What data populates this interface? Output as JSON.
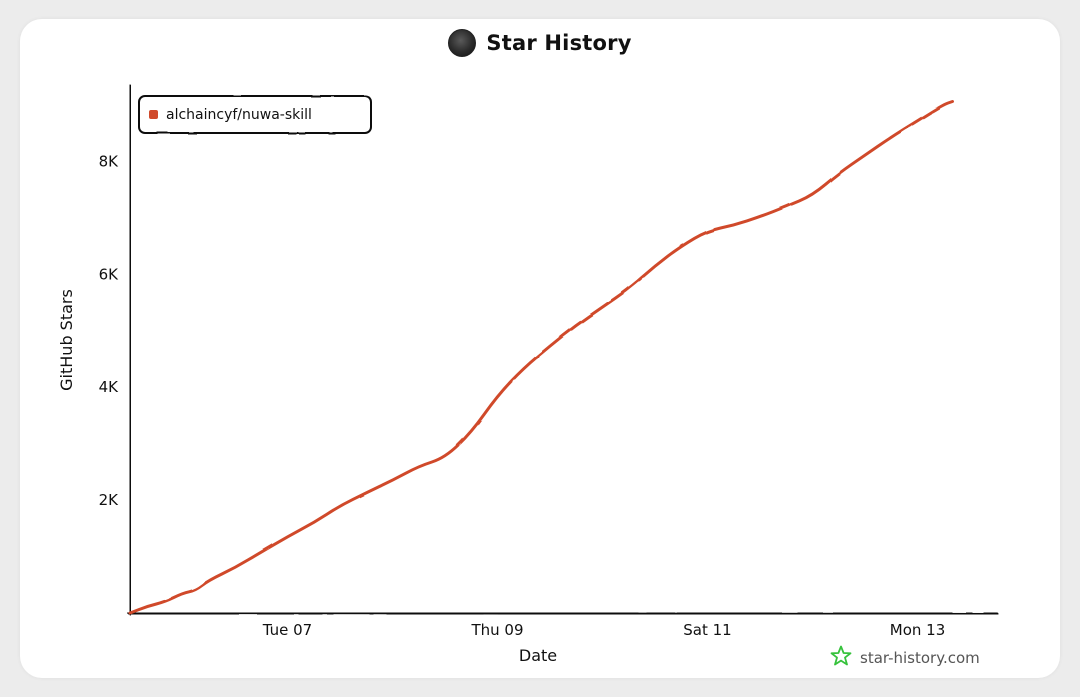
{
  "header": {
    "title": "Star History"
  },
  "watermark": {
    "text": "star-history.com"
  },
  "colors": {
    "series": "#d04a2b",
    "axis": "#111111",
    "watermark_star": "#36c23c"
  },
  "chart_data": {
    "type": "line",
    "xlabel": "Date",
    "ylabel": "GitHub Stars",
    "x_ticks": [
      "Tue 07",
      "Thu 09",
      "Sat 11",
      "Mon 13"
    ],
    "y_ticks": [
      "2K",
      "4K",
      "6K",
      "8K"
    ],
    "ylim": [
      0,
      9300
    ],
    "grid": false,
    "legend_position": "top-left",
    "series": [
      {
        "name": "alchaincyf/nuwa-skill",
        "x": [
          "Apr 05 12:00",
          "Apr 05 16:00",
          "Apr 05 20:00",
          "Apr 06 00:00",
          "Apr 06 03:00",
          "Apr 06 06:00",
          "Apr 06 12:00",
          "Apr 06 18:00",
          "Apr 07 00:00",
          "Apr 07 06:00",
          "Apr 07 12:00",
          "Apr 07 18:00",
          "Apr 08 00:00",
          "Apr 08 06:00",
          "Apr 08 12:00",
          "Apr 08 18:00",
          "Apr 09 00:00",
          "Apr 09 06:00",
          "Apr 09 12:00",
          "Apr 09 18:00",
          "Apr 10 00:00",
          "Apr 10 06:00",
          "Apr 10 12:00",
          "Apr 10 18:00",
          "Apr 11 00:00",
          "Apr 11 06:00",
          "Apr 11 12:00",
          "Apr 11 18:00",
          "Apr 12 00:00",
          "Apr 12 06:00",
          "Apr 12 12:00",
          "Apr 12 18:00",
          "Apr 13 00:00",
          "Apr 13 06:00",
          "Apr 13 08:00"
        ],
        "y": [
          0,
          120,
          200,
          350,
          400,
          580,
          800,
          1080,
          1350,
          1600,
          1900,
          2130,
          2350,
          2600,
          2750,
          3200,
          3850,
          4340,
          4730,
          5100,
          5420,
          5740,
          6150,
          6500,
          6770,
          6870,
          7020,
          7200,
          7400,
          7790,
          8110,
          8430,
          8720,
          9010,
          9060
        ]
      }
    ]
  }
}
